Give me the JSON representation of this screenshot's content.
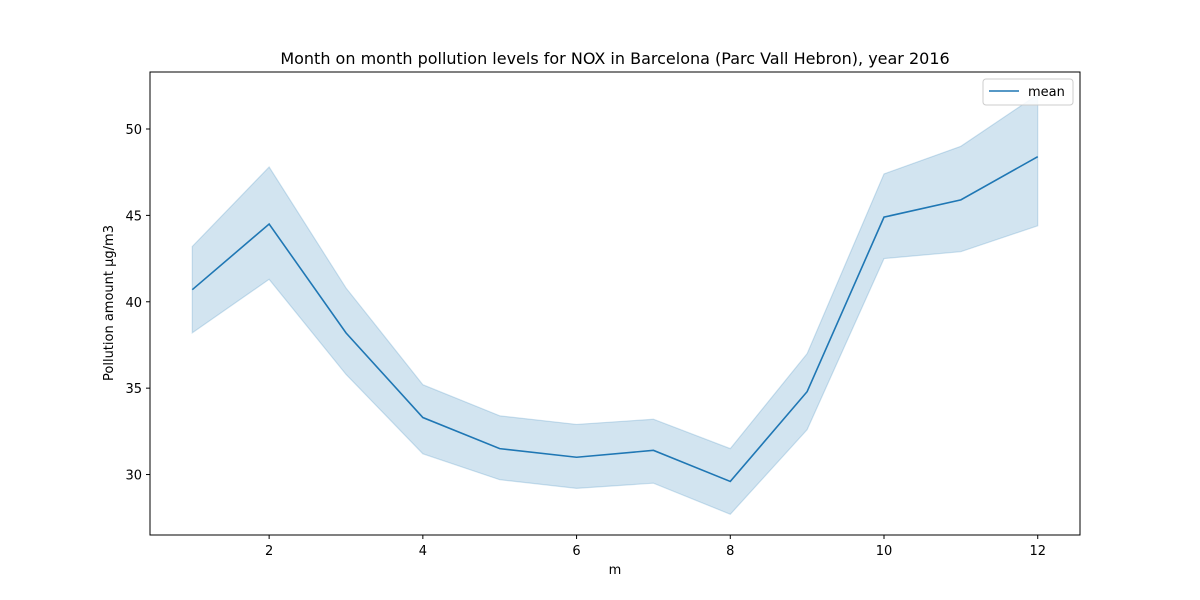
{
  "chart_data": {
    "type": "line",
    "title": "Month on month pollution levels for NOX in Barcelona (Parc Vall Hebron), year 2016",
    "xlabel": "m",
    "ylabel": "Pollution amount µg/m3",
    "xlim": [
      0.45,
      12.55
    ],
    "ylim": [
      26.5,
      53.3
    ],
    "xticks": [
      2,
      4,
      6,
      8,
      10,
      12
    ],
    "yticks": [
      30,
      35,
      40,
      45,
      50
    ],
    "grid": false,
    "legend_position": "top-right",
    "series": [
      {
        "name": "mean",
        "color": "#1f77b4",
        "x": [
          1,
          2,
          3,
          4,
          5,
          6,
          7,
          8,
          9,
          10,
          11,
          12
        ],
        "y": [
          40.7,
          44.5,
          38.2,
          33.3,
          31.5,
          31.0,
          31.4,
          29.6,
          34.8,
          44.9,
          45.9,
          48.4
        ],
        "ci_lower": [
          38.2,
          41.3,
          35.8,
          31.2,
          29.7,
          29.2,
          29.5,
          27.7,
          32.6,
          42.5,
          42.9,
          44.4
        ],
        "ci_upper": [
          43.2,
          47.8,
          40.8,
          35.2,
          33.4,
          32.9,
          33.2,
          31.5,
          37.0,
          47.4,
          49.0,
          52.0
        ]
      }
    ]
  }
}
